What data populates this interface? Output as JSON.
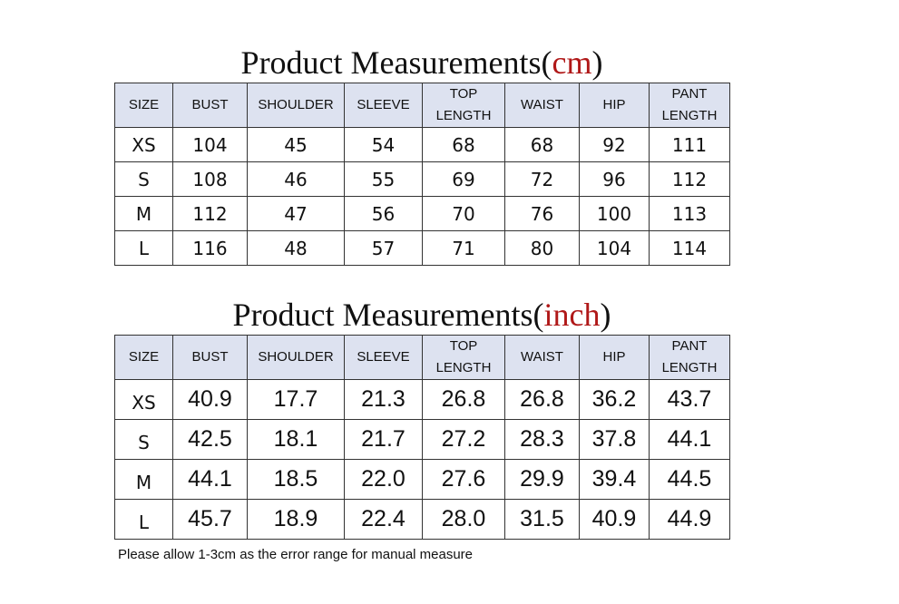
{
  "tables": [
    {
      "title": {
        "prefix": "Product Measurements(",
        "unit": "cm",
        "suffix": ")"
      },
      "header": [
        "SIZE",
        "BUST",
        "SHOULDER",
        "SLEEVE",
        "TOP LENGTH",
        "WAIST",
        "HIP",
        "PANT LENGTH"
      ],
      "rows": [
        [
          "XS",
          "104",
          "45",
          "54",
          "68",
          "68",
          "92",
          "111"
        ],
        [
          "S",
          "108",
          "46",
          "55",
          "69",
          "72",
          "96",
          "112"
        ],
        [
          "M",
          "112",
          "47",
          "56",
          "70",
          "76",
          "100",
          "113"
        ],
        [
          "L",
          "116",
          "48",
          "57",
          "71",
          "80",
          "104",
          "114"
        ]
      ]
    },
    {
      "title": {
        "prefix": "Product Measurements(",
        "unit": "inch",
        "suffix": ")"
      },
      "header": [
        "SIZE",
        "BUST",
        "SHOULDER",
        "SLEEVE",
        "TOP LENGTH",
        "WAIST",
        "HIP",
        "PANT LENGTH"
      ],
      "rows": [
        [
          "XS",
          "40.9",
          "17.7",
          "21.3",
          "26.8",
          "26.8",
          "36.2",
          "43.7"
        ],
        [
          "S",
          "42.5",
          "18.1",
          "21.7",
          "27.2",
          "28.3",
          "37.8",
          "44.1"
        ],
        [
          "M",
          "44.1",
          "18.5",
          "22.0",
          "27.6",
          "29.9",
          "39.4",
          "44.5"
        ],
        [
          "L",
          "45.7",
          "18.9",
          "22.4",
          "28.0",
          "31.5",
          "40.9",
          "44.9"
        ]
      ]
    }
  ],
  "note": "Please allow 1-3cm as the error range for manual measure"
}
